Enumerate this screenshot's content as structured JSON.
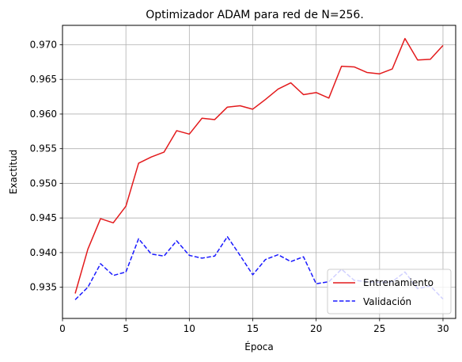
{
  "chart_data": {
    "type": "line",
    "title": "Optimizador ADAM para red de N=256.",
    "xlabel": "Época",
    "ylabel": "Exactitud",
    "xlim": [
      0,
      31
    ],
    "ylim": [
      0.9305,
      0.9728
    ],
    "xticks": [
      0,
      5,
      10,
      15,
      20,
      25,
      30
    ],
    "yticks": [
      0.935,
      0.94,
      0.945,
      0.95,
      0.955,
      0.96,
      0.965,
      0.97
    ],
    "ytick_labels": [
      "0.935",
      "0.940",
      "0.945",
      "0.950",
      "0.955",
      "0.960",
      "0.965",
      "0.970"
    ],
    "grid": true,
    "legend_position": "lower-right",
    "x": [
      1,
      2,
      3,
      4,
      5,
      6,
      7,
      8,
      9,
      10,
      11,
      12,
      13,
      14,
      15,
      16,
      17,
      18,
      19,
      20,
      21,
      22,
      23,
      24,
      25,
      26,
      27,
      28,
      29,
      30
    ],
    "series": [
      {
        "name": "Entrenamiento",
        "color": "#e31a1c",
        "style": "solid",
        "values": [
          0.9341,
          0.9405,
          0.9449,
          0.9443,
          0.9467,
          0.9529,
          0.9538,
          0.9545,
          0.9576,
          0.9571,
          0.9594,
          0.9592,
          0.961,
          0.9612,
          0.9607,
          0.9621,
          0.9636,
          0.9645,
          0.9628,
          0.9631,
          0.9623,
          0.9669,
          0.9668,
          0.966,
          0.9658,
          0.9665,
          0.9709,
          0.9678,
          0.9679,
          0.9699
        ]
      },
      {
        "name": "Validación",
        "color": "#1a1aff",
        "style": "dashed",
        "values": [
          0.9332,
          0.935,
          0.9384,
          0.9367,
          0.9372,
          0.942,
          0.9398,
          0.9395,
          0.9417,
          0.9396,
          0.9392,
          0.9395,
          0.9423,
          0.9396,
          0.9368,
          0.939,
          0.9397,
          0.9387,
          0.9394,
          0.9355,
          0.9358,
          0.9376,
          0.936,
          0.9358,
          0.9357,
          0.9358,
          0.9372,
          0.9348,
          0.9352,
          0.9333
        ]
      }
    ]
  }
}
